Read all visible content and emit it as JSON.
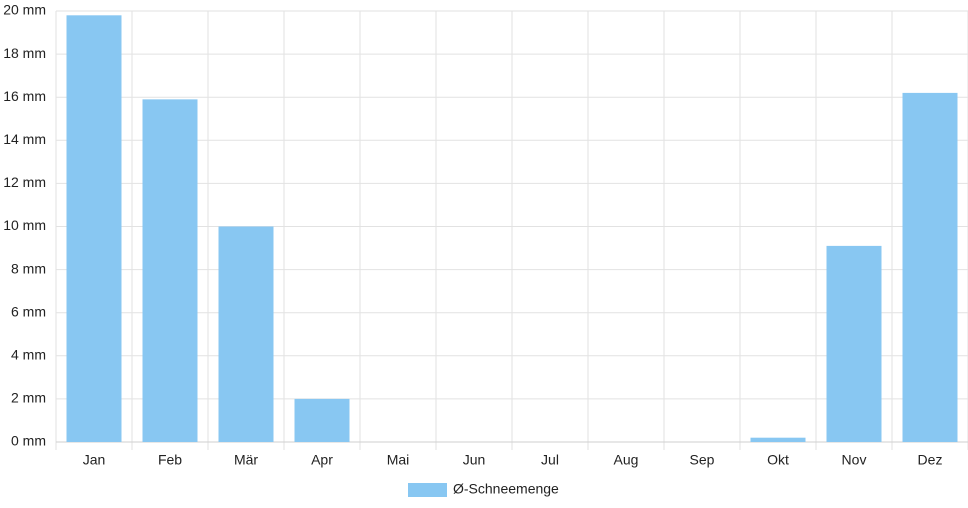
{
  "chart_data": {
    "type": "bar",
    "categories": [
      "Jan",
      "Feb",
      "Mär",
      "Apr",
      "Mai",
      "Jun",
      "Jul",
      "Aug",
      "Sep",
      "Okt",
      "Nov",
      "Dez"
    ],
    "series": [
      {
        "name": "Ø-Schneemenge",
        "color": "#88c7f2",
        "values": [
          19.8,
          15.9,
          10,
          2,
          0,
          0,
          0,
          0,
          0,
          0.2,
          9.1,
          16.2
        ]
      }
    ],
    "ylim": [
      0,
      20
    ],
    "yticks": [
      {
        "value": 0,
        "label": "0 mm"
      },
      {
        "value": 2,
        "label": "2 mm"
      },
      {
        "value": 4,
        "label": "4 mm"
      },
      {
        "value": 6,
        "label": "6 mm"
      },
      {
        "value": 8,
        "label": "8 mm"
      },
      {
        "value": 10,
        "label": "10 mm"
      },
      {
        "value": 12,
        "label": "12 mm"
      },
      {
        "value": 14,
        "label": "14 mm"
      },
      {
        "value": 16,
        "label": "16 mm"
      },
      {
        "value": 18,
        "label": "18 mm"
      },
      {
        "value": 20,
        "label": "20 mm"
      }
    ],
    "grid": true,
    "legend": "bottom"
  }
}
